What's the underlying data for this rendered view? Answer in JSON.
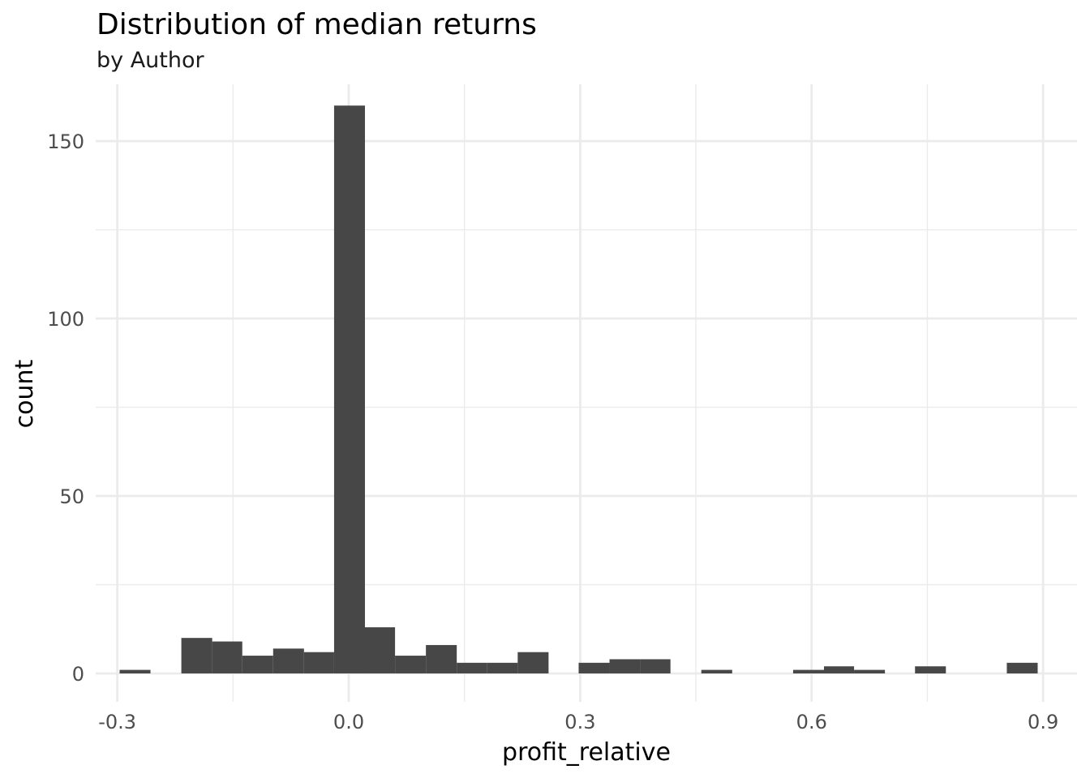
{
  "chart_data": {
    "type": "bar",
    "title": "Distribution of median returns",
    "subtitle": "by Author",
    "xlabel": "profit_relative",
    "ylabel": "count",
    "xlim": [
      -0.328,
      0.944
    ],
    "ylim": [
      -8,
      166
    ],
    "x_ticks": [
      -0.3,
      0.0,
      0.3,
      0.6,
      0.9
    ],
    "x_tick_labels": [
      "-0.3",
      "0.0",
      "0.3",
      "0.6",
      "0.9"
    ],
    "y_ticks": [
      0,
      50,
      100,
      150
    ],
    "y_tick_labels": [
      "0",
      "50",
      "100",
      "150"
    ],
    "grid": true,
    "bar_color": "#474747",
    "gridline_color": "#ebebeb",
    "bins": [
      {
        "x0": -0.297,
        "x1": -0.257,
        "count": 1
      },
      {
        "x0": -0.217,
        "x1": -0.177,
        "count": 10
      },
      {
        "x0": -0.177,
        "x1": -0.138,
        "count": 9
      },
      {
        "x0": -0.138,
        "x1": -0.098,
        "count": 5
      },
      {
        "x0": -0.098,
        "x1": -0.058,
        "count": 7
      },
      {
        "x0": -0.058,
        "x1": -0.019,
        "count": 6
      },
      {
        "x0": -0.019,
        "x1": 0.021,
        "count": 160
      },
      {
        "x0": 0.021,
        "x1": 0.06,
        "count": 13
      },
      {
        "x0": 0.06,
        "x1": 0.1,
        "count": 5
      },
      {
        "x0": 0.1,
        "x1": 0.14,
        "count": 8
      },
      {
        "x0": 0.14,
        "x1": 0.179,
        "count": 3
      },
      {
        "x0": 0.179,
        "x1": 0.219,
        "count": 3
      },
      {
        "x0": 0.219,
        "x1": 0.259,
        "count": 6
      },
      {
        "x0": 0.298,
        "x1": 0.338,
        "count": 3
      },
      {
        "x0": 0.338,
        "x1": 0.378,
        "count": 4
      },
      {
        "x0": 0.378,
        "x1": 0.417,
        "count": 4
      },
      {
        "x0": 0.457,
        "x1": 0.497,
        "count": 1
      },
      {
        "x0": 0.576,
        "x1": 0.616,
        "count": 1
      },
      {
        "x0": 0.616,
        "x1": 0.655,
        "count": 2
      },
      {
        "x0": 0.655,
        "x1": 0.695,
        "count": 1
      },
      {
        "x0": 0.734,
        "x1": 0.774,
        "count": 2
      },
      {
        "x0": 0.853,
        "x1": 0.893,
        "count": 3
      }
    ]
  }
}
